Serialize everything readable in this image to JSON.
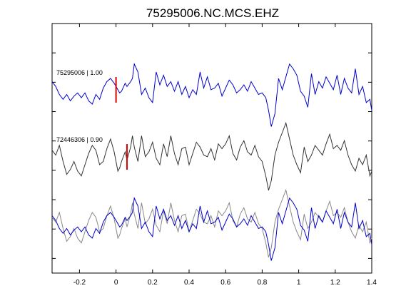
{
  "chart_data": {
    "type": "line",
    "title": "75295006.NC.MCS.EHZ",
    "xlabel": "",
    "ylabel": "",
    "xlim": [
      -0.35,
      1.4
    ],
    "xticks": [
      -0.2,
      0,
      0.2,
      0.4,
      0.6,
      0.8,
      1,
      1.2,
      1.4
    ],
    "xtick_labels": [
      "-0.2",
      "0",
      "0.2",
      "0.4",
      "0.6",
      "0.8",
      "1",
      "1.2",
      "1.4"
    ],
    "grid": false,
    "legend": "none",
    "traces": [
      {
        "label": "75295006 | 1.00",
        "color": "#0000cc",
        "pick_color": "#dd0000",
        "pick_time": 0.0,
        "x": [
          -0.35,
          -0.33,
          -0.31,
          -0.29,
          -0.27,
          -0.25,
          -0.23,
          -0.21,
          -0.19,
          -0.17,
          -0.15,
          -0.13,
          -0.11,
          -0.09,
          -0.07,
          -0.05,
          -0.03,
          -0.01,
          0.01,
          0.02,
          0.03,
          0.05,
          0.06,
          0.08,
          0.09,
          0.1,
          0.12,
          0.14,
          0.16,
          0.18,
          0.2,
          0.22,
          0.24,
          0.26,
          0.28,
          0.3,
          0.32,
          0.34,
          0.36,
          0.38,
          0.4,
          0.42,
          0.44,
          0.46,
          0.48,
          0.5,
          0.52,
          0.54,
          0.56,
          0.58,
          0.6,
          0.62,
          0.64,
          0.66,
          0.68,
          0.7,
          0.72,
          0.74,
          0.76,
          0.78,
          0.8,
          0.82,
          0.835,
          0.85,
          0.87,
          0.89,
          0.91,
          0.93,
          0.95,
          0.97,
          0.99,
          1.01,
          1.03,
          1.05,
          1.07,
          1.09,
          1.11,
          1.13,
          1.15,
          1.17,
          1.19,
          1.21,
          1.23,
          1.25,
          1.27,
          1.29,
          1.31,
          1.33,
          1.35,
          1.37,
          1.39,
          1.4
        ],
        "y": [
          0.3,
          0.15,
          -0.1,
          -0.25,
          -0.1,
          -0.3,
          -0.15,
          -0.05,
          -0.2,
          -0.05,
          -0.3,
          -0.4,
          -0.1,
          -0.25,
          0.1,
          0.3,
          0.4,
          0.25,
          0.05,
          -0.05,
          0.0,
          0.25,
          0.15,
          0.3,
          0.4,
          0.85,
          0.6,
          -0.1,
          0.1,
          -0.2,
          -0.35,
          0.6,
          0.2,
          0.5,
          0.15,
          0.3,
          0.0,
          0.3,
          -0.1,
          0.15,
          -0.2,
          0.05,
          -0.1,
          0.6,
          0.1,
          0.45,
          0.05,
          0.1,
          0.25,
          -0.15,
          0.1,
          0.35,
          0.2,
          -0.05,
          0.05,
          0.2,
          0.0,
          0.3,
          0.1,
          -0.1,
          -0.05,
          -0.2,
          -0.6,
          -1.1,
          -0.7,
          0.4,
          0.05,
          0.45,
          0.85,
          0.7,
          0.5,
          0.0,
          -0.15,
          -0.5,
          0.55,
          -0.1,
          0.3,
          0.1,
          0.45,
          0.25,
          0.05,
          0.5,
          -0.1,
          0.4,
          0.1,
          -0.05,
          0.7,
          -0.1,
          0.15,
          -0.35,
          -0.25,
          -0.6
        ]
      },
      {
        "label": "72446306 | 0.90",
        "color": "#333333",
        "pick_color": "#dd0000",
        "pick_time": 0.06,
        "x": [
          -0.35,
          -0.33,
          -0.31,
          -0.29,
          -0.27,
          -0.25,
          -0.23,
          -0.21,
          -0.19,
          -0.17,
          -0.15,
          -0.13,
          -0.11,
          -0.09,
          -0.07,
          -0.05,
          -0.03,
          -0.01,
          0.01,
          0.02,
          0.03,
          0.05,
          0.06,
          0.08,
          0.09,
          0.1,
          0.12,
          0.14,
          0.16,
          0.18,
          0.2,
          0.22,
          0.24,
          0.26,
          0.28,
          0.3,
          0.32,
          0.34,
          0.36,
          0.38,
          0.4,
          0.42,
          0.44,
          0.46,
          0.48,
          0.5,
          0.52,
          0.54,
          0.56,
          0.58,
          0.6,
          0.62,
          0.64,
          0.66,
          0.68,
          0.7,
          0.72,
          0.74,
          0.76,
          0.78,
          0.8,
          0.82,
          0.835,
          0.85,
          0.87,
          0.89,
          0.91,
          0.93,
          0.95,
          0.97,
          0.99,
          1.01,
          1.03,
          1.05,
          1.07,
          1.09,
          1.11,
          1.13,
          1.15,
          1.17,
          1.19,
          1.21,
          1.23,
          1.25,
          1.27,
          1.29,
          1.31,
          1.33,
          1.35,
          1.37,
          1.39,
          1.4
        ],
        "y": [
          0.25,
          0.1,
          0.4,
          -0.1,
          -0.5,
          -0.35,
          -0.1,
          -0.4,
          -0.55,
          -0.2,
          0.15,
          0.4,
          0.25,
          -0.2,
          -0.1,
          0.3,
          0.6,
          0.2,
          -0.4,
          -0.3,
          -0.1,
          0.2,
          -0.05,
          0.35,
          0.7,
          0.35,
          -0.1,
          0.7,
          0.05,
          0.2,
          0.5,
          0.0,
          -0.2,
          0.45,
          0.05,
          0.7,
          0.15,
          -0.2,
          0.3,
          0.35,
          -0.2,
          0.15,
          0.5,
          0.35,
          0.1,
          0.05,
          0.3,
          -0.05,
          0.45,
          0.3,
          0.45,
          0.7,
          0.15,
          -0.05,
          0.35,
          0.55,
          0.2,
          0.1,
          0.4,
          0.05,
          -0.1,
          -0.55,
          -1.0,
          -0.7,
          0.1,
          0.5,
          0.8,
          1.1,
          0.6,
          0.1,
          -0.2,
          -0.45,
          0.35,
          -0.1,
          0.1,
          0.4,
          0.25,
          0.1,
          0.45,
          0.75,
          0.3,
          0.4,
          0.25,
          0.55,
          0.1,
          -0.2,
          -0.4,
          0.0,
          -0.2,
          0.1,
          -0.55,
          -0.4
        ],
        "extra_plot": "overlay"
      }
    ]
  }
}
